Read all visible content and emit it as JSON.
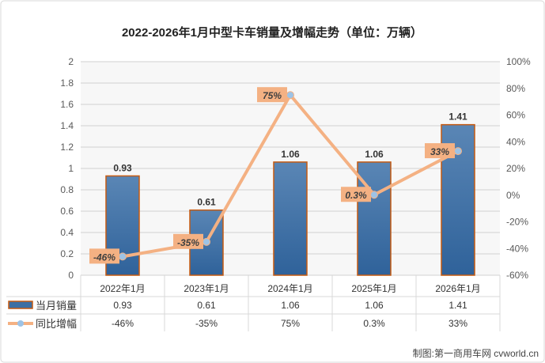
{
  "chart_data": {
    "type": "bar+line",
    "title": "2022-2026年1月中型卡车销量及增幅走势（单位：万辆）",
    "categories": [
      "2022年1月",
      "2023年1月",
      "2024年1月",
      "2025年1月",
      "2026年1月"
    ],
    "series": [
      {
        "name": "当月销量",
        "type": "bar",
        "axis": "left",
        "values": [
          0.93,
          0.61,
          1.06,
          1.06,
          1.41
        ],
        "labels": [
          "0.93",
          "0.61",
          "1.06",
          "1.06",
          "1.41"
        ],
        "color": "#3d6fa3",
        "border": "#c55a11"
      },
      {
        "name": "同比增幅",
        "type": "line",
        "axis": "right",
        "values": [
          -46,
          -35,
          75,
          0.3,
          33
        ],
        "labels": [
          "-46%",
          "-35%",
          "75%",
          "0.3%",
          "33%"
        ],
        "color": "#f4b183",
        "marker": "#9dc3e6"
      }
    ],
    "left_axis": {
      "ylim": [
        0,
        2
      ],
      "ticks": [
        "0",
        "0.2",
        "0.4",
        "0.6",
        "0.8",
        "1",
        "1.2",
        "1.4",
        "1.6",
        "1.8",
        "2"
      ]
    },
    "right_axis": {
      "ylim": [
        -60,
        100
      ],
      "ticks": [
        "-60%",
        "-40%",
        "-20%",
        "0%",
        "20%",
        "40%",
        "60%",
        "80%",
        "100%"
      ]
    },
    "grid": true,
    "legend": "data-table",
    "source": "制图:第一商用车网 cvworld.cn"
  }
}
